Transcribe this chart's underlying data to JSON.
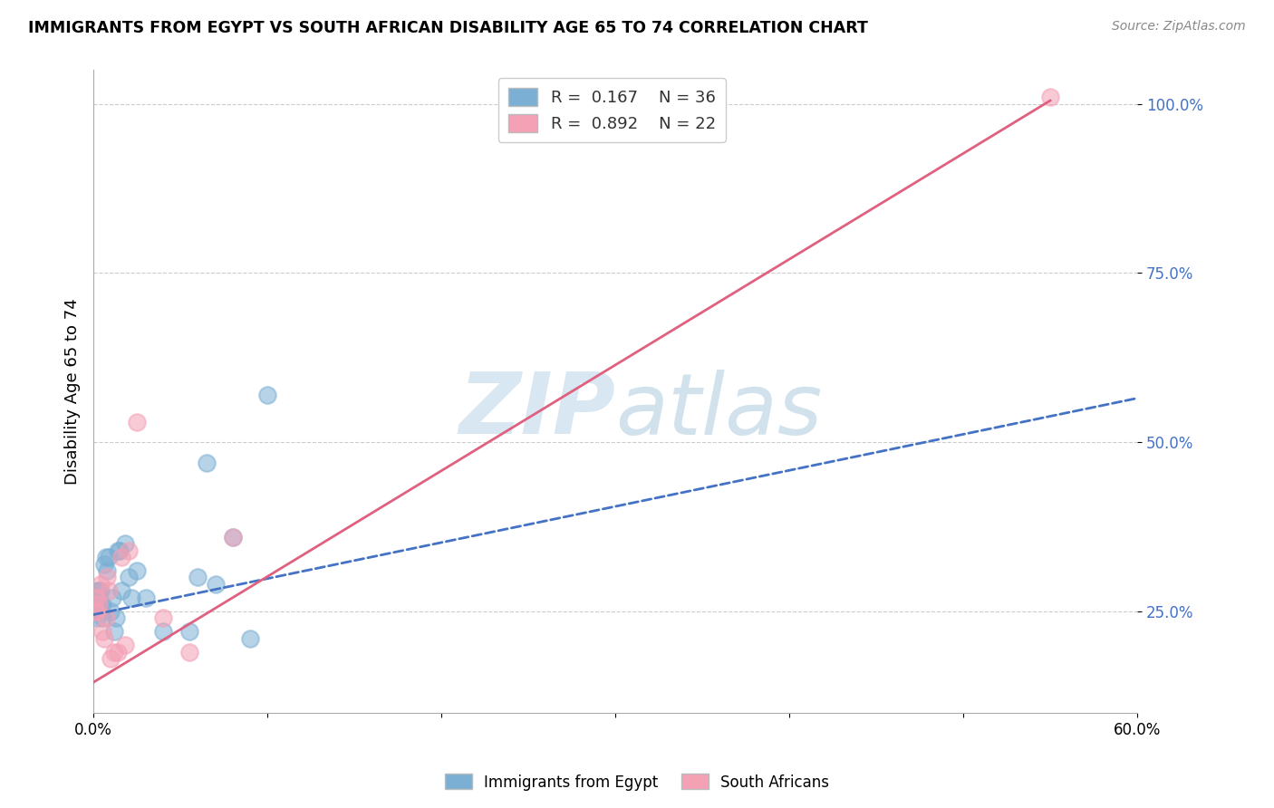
{
  "title": "IMMIGRANTS FROM EGYPT VS SOUTH AFRICAN DISABILITY AGE 65 TO 74 CORRELATION CHART",
  "source": "Source: ZipAtlas.com",
  "ylabel": "Disability Age 65 to 74",
  "watermark": "ZIPatlas",
  "x_min": 0.0,
  "x_max": 0.6,
  "y_min": 0.1,
  "y_max": 1.05,
  "x_ticks": [
    0.0,
    0.1,
    0.2,
    0.3,
    0.4,
    0.5,
    0.6
  ],
  "x_tick_labels": [
    "0.0%",
    "",
    "",
    "",
    "",
    "",
    "60.0%"
  ],
  "y_ticks": [
    0.25,
    0.5,
    0.75,
    1.0
  ],
  "y_tick_labels": [
    "25.0%",
    "50.0%",
    "75.0%",
    "100.0%"
  ],
  "series1_color": "#7bafd4",
  "series2_color": "#f4a0b5",
  "trend1_color": "#4472c4",
  "trend2_color": "#e06080",
  "background_color": "#ffffff",
  "grid_color": "#cccccc",
  "egypt_x": [
    0.001,
    0.001,
    0.001,
    0.002,
    0.002,
    0.002,
    0.003,
    0.003,
    0.004,
    0.004,
    0.005,
    0.005,
    0.006,
    0.007,
    0.008,
    0.009,
    0.01,
    0.011,
    0.012,
    0.013,
    0.014,
    0.015,
    0.016,
    0.018,
    0.02,
    0.022,
    0.025,
    0.03,
    0.04,
    0.055,
    0.06,
    0.065,
    0.07,
    0.08,
    0.09,
    0.1
  ],
  "egypt_y": [
    0.25,
    0.26,
    0.27,
    0.24,
    0.27,
    0.28,
    0.25,
    0.28,
    0.26,
    0.28,
    0.24,
    0.26,
    0.32,
    0.33,
    0.31,
    0.33,
    0.25,
    0.27,
    0.22,
    0.24,
    0.34,
    0.34,
    0.28,
    0.35,
    0.3,
    0.27,
    0.31,
    0.27,
    0.22,
    0.22,
    0.3,
    0.47,
    0.29,
    0.36,
    0.21,
    0.57
  ],
  "sa_x": [
    0.001,
    0.001,
    0.002,
    0.002,
    0.003,
    0.004,
    0.005,
    0.006,
    0.007,
    0.008,
    0.009,
    0.01,
    0.012,
    0.014,
    0.016,
    0.018,
    0.02,
    0.025,
    0.04,
    0.055,
    0.08,
    0.55
  ],
  "sa_y": [
    0.25,
    0.27,
    0.25,
    0.27,
    0.26,
    0.29,
    0.22,
    0.21,
    0.24,
    0.3,
    0.28,
    0.18,
    0.19,
    0.19,
    0.33,
    0.2,
    0.34,
    0.53,
    0.24,
    0.19,
    0.36,
    1.01
  ],
  "trend1_x0": 0.0,
  "trend1_x1": 0.6,
  "trend1_y0": 0.245,
  "trend1_y1": 0.565,
  "trend2_x0": 0.0,
  "trend2_x1": 0.55,
  "trend2_y0": 0.145,
  "trend2_y1": 1.005
}
